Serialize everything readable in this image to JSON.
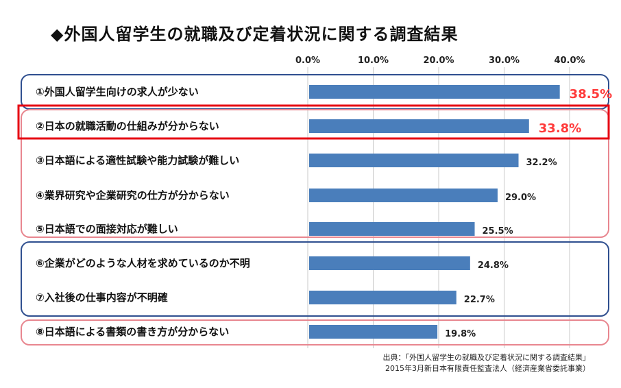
{
  "title": "◆外国人留学生の就職及び定着状況に関する調査結果",
  "source": {
    "line1": "出典：「外国人留学生の就職及び定着状況に関する調査結果」",
    "line2": "2015年3月新日本有限責任監査法人（経済産業省委託事業）"
  },
  "colors": {
    "bar": "#4a7ebb",
    "highlight_text": "#ff3b3b",
    "group_box_blue": "#2f4f8f",
    "group_box_pink": "#e8868f",
    "selection_box": "#e60012",
    "grid": "#c8c8c8"
  },
  "chart_data": {
    "type": "bar",
    "orientation": "horizontal",
    "title": "◆外国人留学生の就職及び定着状況に関する調査結果",
    "xlabel": "",
    "ylabel": "",
    "xlim": [
      0,
      40
    ],
    "ticks": [
      "0.0%",
      "10.0%",
      "20.0%",
      "30.0%",
      "40.0%"
    ],
    "tick_values": [
      0,
      10,
      20,
      30,
      40
    ],
    "grid": true,
    "categories": [
      "①外国人留学生向けの求人が少ない",
      "②日本の就職活動の仕組みが分からない",
      "③日本語による適性試験や能力試験が難しい",
      "④業界研究や企業研究の仕方が分からない",
      "⑤日本語での面接対応が難しい",
      "⑥企業がどのような人材を求めているのか不明",
      "⑦入社後の仕事内容が不明確",
      "⑧日本語による書類の書き方が分からない"
    ],
    "values": [
      38.5,
      33.8,
      32.2,
      29.0,
      25.5,
      24.8,
      22.7,
      19.8
    ],
    "value_labels": [
      "38.5%",
      "33.8%",
      "32.2%",
      "29.0%",
      "25.5%",
      "24.8%",
      "22.7%",
      "19.8%"
    ],
    "highlighted": [
      0,
      1
    ]
  }
}
